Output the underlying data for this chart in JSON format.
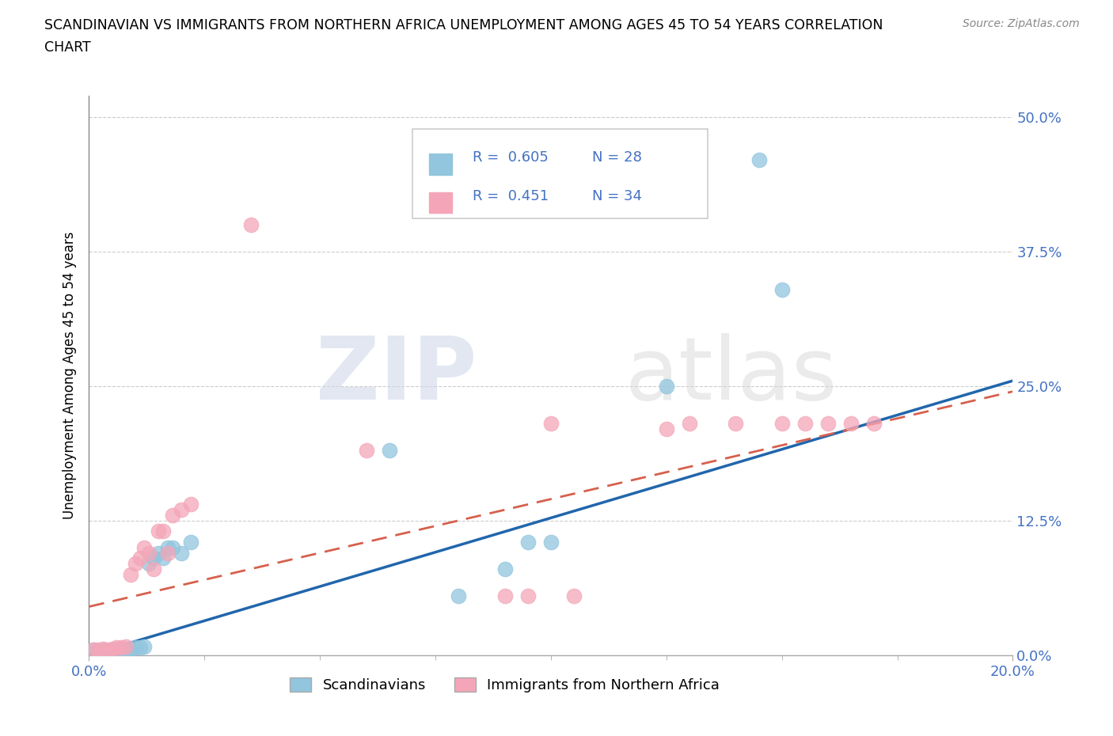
{
  "title_line1": "SCANDINAVIAN VS IMMIGRANTS FROM NORTHERN AFRICA UNEMPLOYMENT AMONG AGES 45 TO 54 YEARS CORRELATION",
  "title_line2": "CHART",
  "source": "Source: ZipAtlas.com",
  "ylabel": "Unemployment Among Ages 45 to 54 years",
  "ytick_labels": [
    "0.0%",
    "12.5%",
    "25.0%",
    "37.5%",
    "50.0%"
  ],
  "ytick_values": [
    0,
    0.125,
    0.25,
    0.375,
    0.5
  ],
  "xlim": [
    0,
    0.2
  ],
  "ylim": [
    0,
    0.52
  ],
  "watermark_zip": "ZIP",
  "watermark_atlas": "atlas",
  "legend_blue_r": "0.605",
  "legend_blue_n": "28",
  "legend_pink_r": "0.451",
  "legend_pink_n": "34",
  "legend_blue_label": "Scandinavians",
  "legend_pink_label": "Immigrants from Northern Africa",
  "blue_scatter_color": "#92c5de",
  "pink_scatter_color": "#f4a6b8",
  "blue_line_color": "#2166ac",
  "pink_line_color": "#d6604d",
  "r_n_color": "#4472C4",
  "scatter_blue": [
    [
      0.001,
      0.005
    ],
    [
      0.002,
      0.004
    ],
    [
      0.003,
      0.005
    ],
    [
      0.004,
      0.004
    ],
    [
      0.005,
      0.005
    ],
    [
      0.006,
      0.004
    ],
    [
      0.007,
      0.006
    ],
    [
      0.008,
      0.005
    ],
    [
      0.009,
      0.006
    ],
    [
      0.01,
      0.007
    ],
    [
      0.011,
      0.007
    ],
    [
      0.012,
      0.008
    ],
    [
      0.013,
      0.085
    ],
    [
      0.014,
      0.09
    ],
    [
      0.015,
      0.095
    ],
    [
      0.016,
      0.09
    ],
    [
      0.017,
      0.1
    ],
    [
      0.018,
      0.1
    ],
    [
      0.02,
      0.095
    ],
    [
      0.022,
      0.105
    ],
    [
      0.065,
      0.19
    ],
    [
      0.08,
      0.055
    ],
    [
      0.09,
      0.08
    ],
    [
      0.095,
      0.105
    ],
    [
      0.1,
      0.105
    ],
    [
      0.125,
      0.25
    ],
    [
      0.145,
      0.46
    ],
    [
      0.15,
      0.34
    ]
  ],
  "scatter_pink": [
    [
      0.001,
      0.005
    ],
    [
      0.002,
      0.005
    ],
    [
      0.003,
      0.006
    ],
    [
      0.004,
      0.005
    ],
    [
      0.005,
      0.006
    ],
    [
      0.006,
      0.007
    ],
    [
      0.007,
      0.007
    ],
    [
      0.008,
      0.008
    ],
    [
      0.009,
      0.075
    ],
    [
      0.01,
      0.085
    ],
    [
      0.011,
      0.09
    ],
    [
      0.012,
      0.1
    ],
    [
      0.013,
      0.095
    ],
    [
      0.014,
      0.08
    ],
    [
      0.015,
      0.115
    ],
    [
      0.016,
      0.115
    ],
    [
      0.017,
      0.095
    ],
    [
      0.018,
      0.13
    ],
    [
      0.02,
      0.135
    ],
    [
      0.022,
      0.14
    ],
    [
      0.035,
      0.4
    ],
    [
      0.06,
      0.19
    ],
    [
      0.09,
      0.055
    ],
    [
      0.095,
      0.055
    ],
    [
      0.1,
      0.215
    ],
    [
      0.105,
      0.055
    ],
    [
      0.125,
      0.21
    ],
    [
      0.13,
      0.215
    ],
    [
      0.14,
      0.215
    ],
    [
      0.15,
      0.215
    ],
    [
      0.155,
      0.215
    ],
    [
      0.16,
      0.215
    ],
    [
      0.165,
      0.215
    ],
    [
      0.17,
      0.215
    ]
  ],
  "blue_trendline_x": [
    0.0,
    0.2
  ],
  "blue_trendline_y": [
    0.0,
    0.255
  ],
  "pink_trendline_x": [
    0.0,
    0.2
  ],
  "pink_trendline_y": [
    0.045,
    0.245
  ]
}
